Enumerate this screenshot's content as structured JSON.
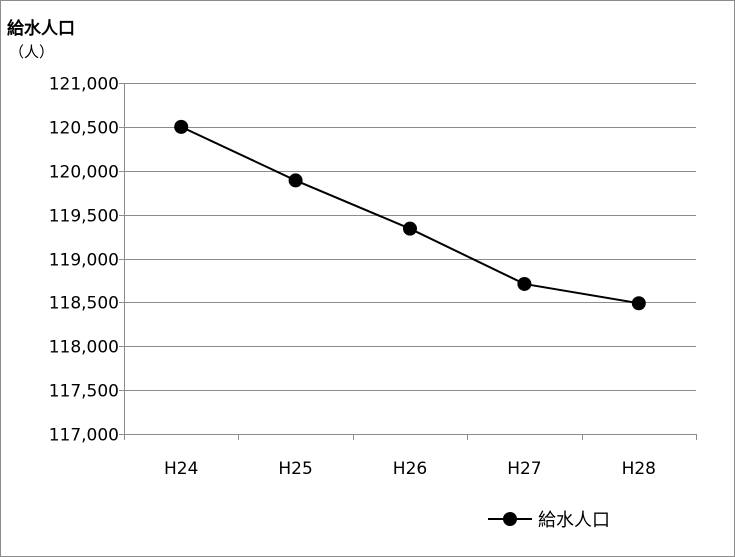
{
  "chart_data": {
    "type": "line",
    "title": "給水人口",
    "ylabel": "（人）",
    "categories": [
      "H24",
      "H25",
      "H26",
      "H27",
      "H28"
    ],
    "series": [
      {
        "name": "給水人口",
        "values": [
          120500,
          119890,
          119340,
          118710,
          118490
        ]
      }
    ],
    "ylim": [
      117000,
      121000
    ],
    "yticks": [
      117000,
      117500,
      118000,
      118500,
      119000,
      119500,
      120000,
      120500,
      121000
    ],
    "ytick_labels": [
      "117,000",
      "117,500",
      "118,000",
      "118,500",
      "119,000",
      "119,500",
      "120,000",
      "120,500",
      "121,000"
    ],
    "grid": true,
    "legend_position": "bottom-right",
    "colors": {
      "line": "#000000",
      "grid": "#8c8c8c"
    }
  }
}
